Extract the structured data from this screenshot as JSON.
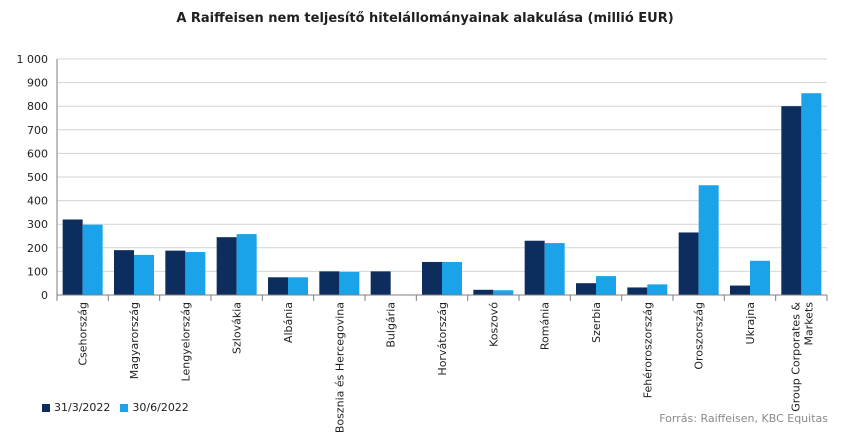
{
  "chart_data": {
    "type": "bar",
    "title": "A Raiffeisen nem teljesítő hitelállományainak alakulása (millió EUR)",
    "categories": [
      "Csehország",
      "Magyarország",
      "Lengyelország",
      "Szlovákia",
      "Albánia",
      "Bosznia és Hercegovina",
      "Bulgária",
      "Horvátország",
      "Koszovó",
      "Románia",
      "Szerbia",
      "Fehéroroszország",
      "Oroszország",
      "Ukrajna",
      "Group Corporates & Markets"
    ],
    "series": [
      {
        "name": "31/3/2022",
        "color": "#0d2d5e",
        "values": [
          320,
          190,
          188,
          245,
          75,
          100,
          100,
          140,
          22,
          230,
          50,
          32,
          265,
          40,
          800
        ]
      },
      {
        "name": "30/6/2022",
        "color": "#1aa3e8",
        "values": [
          298,
          170,
          182,
          258,
          75,
          98,
          0,
          140,
          20,
          220,
          80,
          45,
          465,
          145,
          855
        ]
      }
    ],
    "y_ticks": [
      "0",
      "100",
      "200",
      "300",
      "400",
      "500",
      "600",
      "700",
      "800",
      "900",
      "1 000"
    ],
    "ylim": [
      0,
      1000
    ],
    "grid": true,
    "legend_position": "bottom-left",
    "source": "Forrás: Raiffeisen,  KBC Equitas"
  }
}
